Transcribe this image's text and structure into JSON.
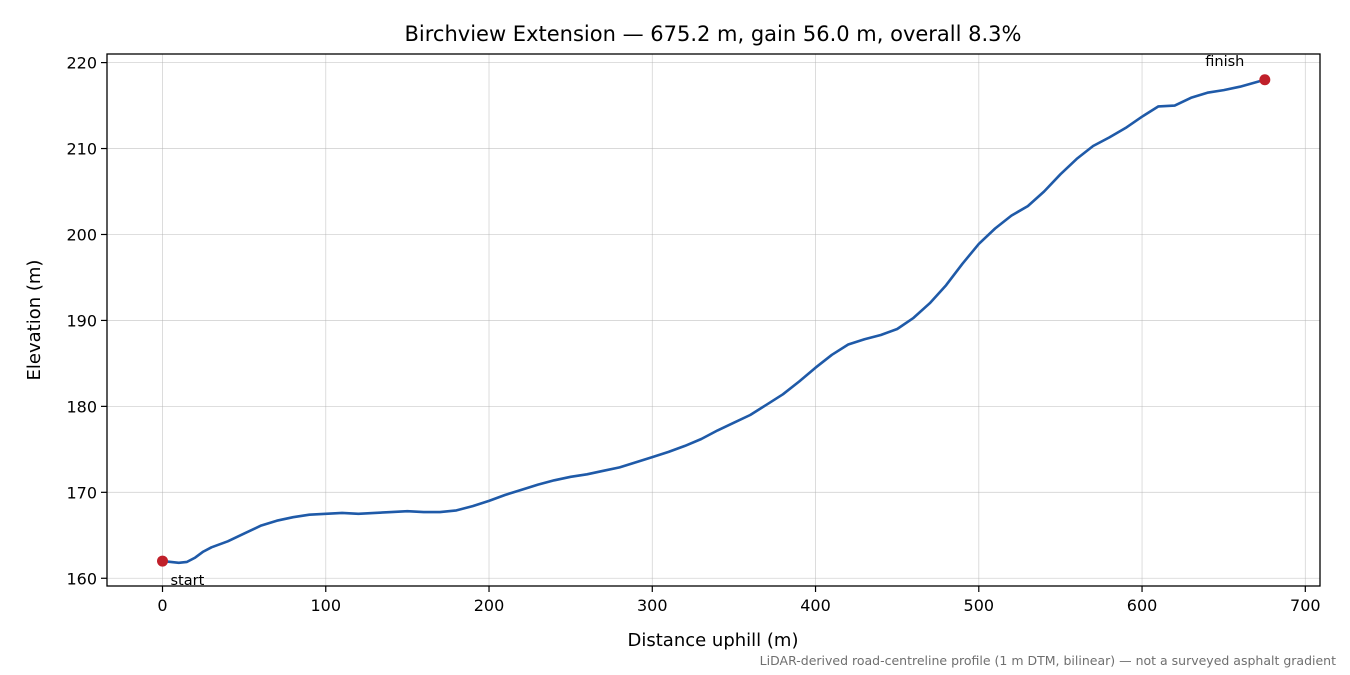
{
  "chart_data": {
    "type": "line",
    "title": "Birchview Extension — 675.2 m, gain 56.0 m, overall 8.3%",
    "xlabel": "Distance uphill (m)",
    "ylabel": "Elevation (m)",
    "xlim": [
      -34,
      709
    ],
    "ylim": [
      159.1,
      221.0
    ],
    "xticks": [
      0,
      100,
      200,
      300,
      400,
      500,
      600,
      700
    ],
    "yticks": [
      160,
      170,
      180,
      190,
      200,
      210,
      220
    ],
    "grid": true,
    "line_color": "#1f5aa8",
    "marker_color": "#c0202a",
    "series": [
      {
        "x": [
          0,
          5,
          10,
          15,
          20,
          25,
          30,
          40,
          50,
          60,
          70,
          80,
          90,
          100,
          110,
          120,
          130,
          140,
          150,
          160,
          170,
          180,
          190,
          200,
          210,
          220,
          230,
          240,
          250,
          260,
          270,
          280,
          290,
          300,
          310,
          320,
          330,
          340,
          350,
          360,
          370,
          380,
          390,
          400,
          410,
          420,
          430,
          440,
          450,
          460,
          470,
          480,
          490,
          500,
          510,
          520,
          530,
          540,
          550,
          560,
          570,
          580,
          590,
          600,
          610,
          620,
          630,
          640,
          650,
          660,
          675.2
        ],
        "y": [
          162.0,
          161.9,
          161.8,
          161.9,
          162.4,
          163.1,
          163.6,
          164.3,
          165.2,
          166.1,
          166.7,
          167.1,
          167.4,
          167.5,
          167.6,
          167.5,
          167.6,
          167.7,
          167.8,
          167.7,
          167.7,
          167.9,
          168.4,
          169.0,
          169.7,
          170.3,
          170.9,
          171.4,
          171.8,
          172.1,
          172.5,
          172.9,
          173.5,
          174.1,
          174.7,
          175.4,
          176.2,
          177.2,
          178.1,
          179.0,
          180.2,
          181.4,
          182.9,
          184.5,
          186.0,
          187.2,
          187.8,
          188.3,
          189.0,
          190.3,
          192.0,
          194.1,
          196.6,
          198.9,
          200.7,
          202.2,
          203.3,
          205.0,
          207.0,
          208.8,
          210.3,
          211.3,
          212.4,
          213.7,
          214.9,
          215.0,
          215.9,
          216.5,
          216.8,
          217.2,
          218.0
        ]
      }
    ],
    "annotations": [
      {
        "text": "start",
        "x": 0,
        "y": 162.0
      },
      {
        "text": "finish",
        "x": 675.2,
        "y": 218.0
      }
    ],
    "footnote": "LiDAR-derived road-centreline profile (1 m DTM, bilinear) — not a surveyed asphalt gradient"
  }
}
